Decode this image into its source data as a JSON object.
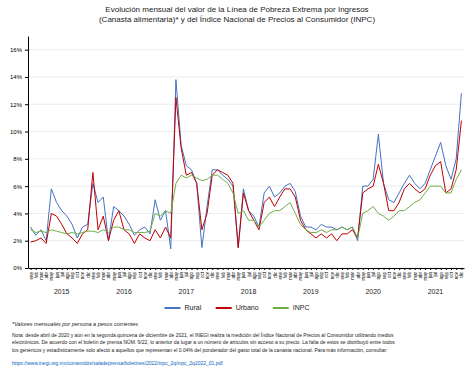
{
  "chart_data": {
    "type": "line",
    "title": "Evolución mensual del valor de la Línea de Pobreza Extrema por Ingresos\n(Canasta alimentaria)* y del Índice Nacional de Precios al Consumidor (INPC)",
    "categories": [
      "ene",
      "feb",
      "mar",
      "abr",
      "may",
      "jun",
      "jul",
      "ago",
      "sep",
      "oct",
      "nov",
      "dic",
      "ene",
      "feb",
      "mar",
      "abr",
      "may",
      "jun",
      "jul",
      "ago",
      "sep",
      "oct",
      "nov",
      "dic",
      "ene",
      "feb",
      "mar",
      "abr",
      "may",
      "jun",
      "jul",
      "ago",
      "sep",
      "oct",
      "nov",
      "dic",
      "ene",
      "feb",
      "mar",
      "abr",
      "may",
      "jun",
      "jul",
      "ago",
      "sep",
      "oct",
      "nov",
      "dic",
      "ene",
      "feb",
      "mar",
      "abr",
      "may",
      "jun",
      "jul",
      "ago",
      "sep",
      "oct",
      "nov",
      "dic",
      "ene",
      "feb",
      "mar",
      "abr",
      "may",
      "jun",
      "jul",
      "ago",
      "sep",
      "oct",
      "nov",
      "dic",
      "ene",
      "feb",
      "mar",
      "abr",
      "may",
      "jun",
      "jul",
      "ago",
      "sep",
      "oct",
      "nov",
      "dic"
    ],
    "series": [
      {
        "name": "Rural",
        "color": "#4472C4",
        "values": [
          0.03,
          0.024,
          0.028,
          0.02,
          0.058,
          0.048,
          0.042,
          0.038,
          0.032,
          0.022,
          0.03,
          0.032,
          0.062,
          0.048,
          0.052,
          0.02,
          0.045,
          0.042,
          0.038,
          0.032,
          0.024,
          0.028,
          0.03,
          0.025,
          0.05,
          0.035,
          0.042,
          0.014,
          0.138,
          0.09,
          0.075,
          0.072,
          0.062,
          0.015,
          0.045,
          0.072,
          0.072,
          0.068,
          0.065,
          0.06,
          0.015,
          0.058,
          0.042,
          0.038,
          0.03,
          0.055,
          0.06,
          0.052,
          0.055,
          0.06,
          0.062,
          0.056,
          0.038,
          0.03,
          0.03,
          0.028,
          0.032,
          0.03,
          0.03,
          0.028,
          0.03,
          0.028,
          0.03,
          0.02,
          0.06,
          0.06,
          0.065,
          0.098,
          0.062,
          0.05,
          0.048,
          0.055,
          0.062,
          0.068,
          0.062,
          0.058,
          0.062,
          0.072,
          0.082,
          0.092,
          0.075,
          0.065,
          0.08,
          0.128
        ]
      },
      {
        "name": "Urbano",
        "color": "#C00000",
        "values": [
          0.019,
          0.02,
          0.022,
          0.018,
          0.04,
          0.038,
          0.032,
          0.025,
          0.022,
          0.018,
          0.025,
          0.028,
          0.07,
          0.028,
          0.038,
          0.02,
          0.035,
          0.042,
          0.028,
          0.025,
          0.018,
          0.025,
          0.022,
          0.02,
          0.028,
          0.022,
          0.03,
          0.022,
          0.125,
          0.088,
          0.068,
          0.07,
          0.062,
          0.028,
          0.04,
          0.068,
          0.072,
          0.07,
          0.068,
          0.062,
          0.015,
          0.055,
          0.042,
          0.035,
          0.028,
          0.048,
          0.052,
          0.045,
          0.052,
          0.058,
          0.058,
          0.052,
          0.035,
          0.028,
          0.025,
          0.022,
          0.025,
          0.022,
          0.025,
          0.02,
          0.025,
          0.025,
          0.028,
          0.022,
          0.055,
          0.058,
          0.06,
          0.076,
          0.062,
          0.042,
          0.042,
          0.048,
          0.058,
          0.062,
          0.058,
          0.055,
          0.058,
          0.068,
          0.075,
          0.078,
          0.055,
          0.058,
          0.072,
          0.108
        ]
      },
      {
        "name": "INPC",
        "color": "#70AD47",
        "values": [
          0.028,
          0.026,
          0.027,
          0.026,
          0.028,
          0.027,
          0.026,
          0.025,
          0.026,
          0.025,
          0.026,
          0.027,
          0.027,
          0.026,
          0.028,
          0.026,
          0.03,
          0.03,
          0.028,
          0.028,
          0.026,
          0.026,
          0.026,
          0.027,
          0.04,
          0.038,
          0.042,
          0.04,
          0.062,
          0.068,
          0.066,
          0.068,
          0.066,
          0.064,
          0.065,
          0.068,
          0.068,
          0.065,
          0.062,
          0.055,
          0.04,
          0.042,
          0.035,
          0.035,
          0.03,
          0.035,
          0.04,
          0.042,
          0.042,
          0.045,
          0.048,
          0.04,
          0.032,
          0.028,
          0.026,
          0.026,
          0.028,
          0.026,
          0.028,
          0.028,
          0.03,
          0.028,
          0.03,
          0.022,
          0.04,
          0.042,
          0.045,
          0.04,
          0.038,
          0.035,
          0.038,
          0.042,
          0.042,
          0.045,
          0.048,
          0.05,
          0.055,
          0.06,
          0.06,
          0.06,
          0.055,
          0.055,
          0.065,
          0.072
        ]
      }
    ],
    "ylim": [
      0,
      0.17
    ],
    "yticks": [
      {
        "value": 0,
        "label": "0%"
      },
      {
        "value": 0.02,
        "label": "2%"
      },
      {
        "value": 0.04,
        "label": "4%"
      },
      {
        "value": 0.06,
        "label": "6%"
      },
      {
        "value": 0.08,
        "label": "8%"
      },
      {
        "value": 0.1,
        "label": "10%"
      },
      {
        "value": 0.12,
        "label": "12%"
      },
      {
        "value": 0.14,
        "label": "14%"
      },
      {
        "value": 0.16,
        "label": "16%"
      }
    ],
    "annotations": [
      {
        "text": "2015",
        "x": 6
      },
      {
        "text": "2016",
        "x": 18
      },
      {
        "text": "2017",
        "x": 30
      },
      {
        "text": "2018",
        "x": 42
      },
      {
        "text": "2019",
        "x": 54
      },
      {
        "text": "2020",
        "x": 66
      },
      {
        "text": "2021",
        "x": 78
      }
    ],
    "footnotes": [
      "*Valores mensuales por persona a pesos corrientes",
      "Nota: desde abril de 2020 y aún en la segunda quincena de diciembre de 2021, el INEGI realiza la medición del Índice Nacional de Precios al Consumidor utilizando medios\nelectrónicos. De acuerdo con el boletín de prensa NÚM. 9/22, lo anterior da lugar a un número de artículos sin acceso a su precio. La falta de estos se distribuyó entre todos\nlos genéricos y estadísticamente solo afectó a aquellos que representan el 0.04% del ponderador del gasto total de la canasta nacional. Para más información, consultar:",
      "https://www.inegi.org.mx/contenidos/saladeprensa/boletines/2022/inpc_2q/inpc_2q2022_01.pdf"
    ],
    "grid": true,
    "legend": "bottom"
  }
}
